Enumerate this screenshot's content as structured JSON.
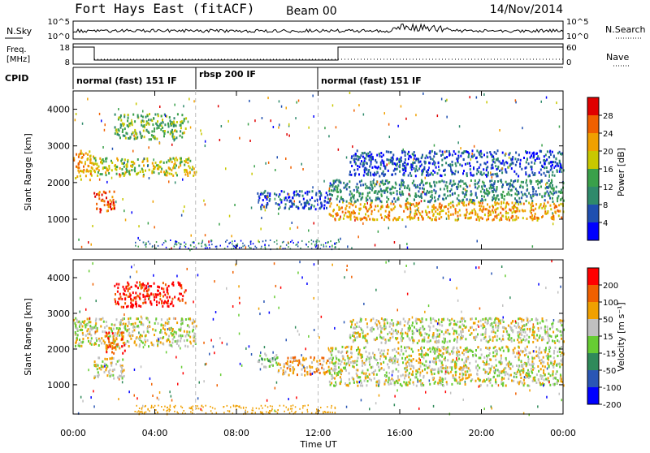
{
  "header": {
    "station": "Fort Hays East (fitACF)",
    "beam": "Beam 00",
    "date": "14/Nov/2014"
  },
  "noise_panel": {
    "left_label": "N.Sky",
    "right_label": "N.Search",
    "left_ticks": [
      "10^5",
      "10^0"
    ],
    "right_ticks": [
      "10^5",
      "10^0"
    ]
  },
  "freq_panel": {
    "left_label_1": "Freq.",
    "left_label_2": "[MHz]",
    "right_label": "Nave",
    "left_ticks": [
      "18",
      "8"
    ],
    "right_ticks": [
      "60",
      "0"
    ]
  },
  "cpid": {
    "label": "CPID",
    "segments": [
      {
        "start_hour": 0,
        "end_hour": 6,
        "text": "normal (fast) 151 IF"
      },
      {
        "start_hour": 6,
        "end_hour": 12,
        "text": "rbsp 200 IF"
      },
      {
        "start_hour": 12,
        "end_hour": 24,
        "text": "normal (fast) 151 IF"
      }
    ]
  },
  "power_panel": {
    "ylabel": "Slant Range [km]",
    "cbar_label": "Power [dB]",
    "cbar_ticks": [
      "28",
      "24",
      "20",
      "16",
      "12",
      "8",
      "4"
    ]
  },
  "velocity_panel": {
    "ylabel": "Slant Range [km]",
    "cbar_label": "Velocity [m s⁻¹]",
    "cbar_ticks": [
      "200",
      "100",
      "50",
      "15",
      "-15",
      "-50",
      "-100",
      "-200"
    ]
  },
  "colors": {
    "power_scale": [
      "#0000ff",
      "#1f4fb0",
      "#2f8a6b",
      "#3aa04a",
      "#c8c800",
      "#f0a000",
      "#f06000",
      "#e00000"
    ],
    "velocity_scale": [
      "#0000ff",
      "#2a56b5",
      "#2f8a5a",
      "#66cc33",
      "#c0c0c0",
      "#f0a000",
      "#f06000",
      "#ff0000"
    ]
  },
  "chart_data": [
    {
      "type": "heatmap",
      "name": "power",
      "xlabel": "Time UT",
      "ylabel": "Slant Range [km]",
      "xlim": [
        0,
        24
      ],
      "ylim": [
        180,
        4500
      ],
      "x_ticks": [
        "00:00",
        "04:00",
        "08:00",
        "12:00",
        "16:00",
        "20:00",
        "00:00"
      ],
      "y_ticks": [
        1000,
        2000,
        3000,
        4000
      ],
      "bands": [
        {
          "t0": 0.0,
          "t1": 1.0,
          "r0": 2100,
          "r1": 2900,
          "level": 5
        },
        {
          "t0": 1.0,
          "t1": 2.0,
          "r0": 1200,
          "r1": 1800,
          "level": 6
        },
        {
          "t0": 1.0,
          "t1": 6.0,
          "r0": 2200,
          "r1": 2700,
          "level": 4
        },
        {
          "t0": 2.0,
          "t1": 5.5,
          "r0": 3200,
          "r1": 3900,
          "level": 3
        },
        {
          "t0": 9.0,
          "t1": 12.5,
          "r0": 1300,
          "r1": 1800,
          "level": 1
        },
        {
          "t0": 12.5,
          "t1": 24.0,
          "r0": 1000,
          "r1": 1500,
          "level": 5
        },
        {
          "t0": 12.5,
          "t1": 24.0,
          "r0": 1500,
          "r1": 2100,
          "level": 2
        },
        {
          "t0": 13.5,
          "t1": 24.0,
          "r0": 2200,
          "r1": 2900,
          "level": 1
        }
      ]
    },
    {
      "type": "heatmap",
      "name": "velocity",
      "xlabel": "Time UT",
      "ylabel": "Slant Range [km]",
      "xlim": [
        0,
        24
      ],
      "ylim": [
        180,
        4500
      ],
      "x_ticks": [
        "00:00",
        "04:00",
        "08:00",
        "12:00",
        "16:00",
        "20:00",
        "00:00"
      ],
      "y_ticks": [
        1000,
        2000,
        3000,
        4000
      ],
      "bands": [
        {
          "t0": 0.0,
          "t1": 6.0,
          "r0": 2100,
          "r1": 2900,
          "level": 4
        },
        {
          "t0": 1.0,
          "t1": 2.5,
          "r0": 1200,
          "r1": 1800,
          "level": 4
        },
        {
          "t0": 1.5,
          "t1": 2.5,
          "r0": 1900,
          "r1": 2500,
          "level": 6
        },
        {
          "t0": 2.0,
          "t1": 5.5,
          "r0": 3200,
          "r1": 3900,
          "level": 7
        },
        {
          "t0": 9.0,
          "t1": 10.0,
          "r0": 1500,
          "r1": 1900,
          "level": 3
        },
        {
          "t0": 10.0,
          "t1": 12.5,
          "r0": 1300,
          "r1": 1800,
          "level": 5
        },
        {
          "t0": 12.5,
          "t1": 24.0,
          "r0": 1000,
          "r1": 2100,
          "level": 4
        },
        {
          "t0": 13.5,
          "t1": 24.0,
          "r0": 2200,
          "r1": 2900,
          "level": 4
        }
      ]
    }
  ]
}
